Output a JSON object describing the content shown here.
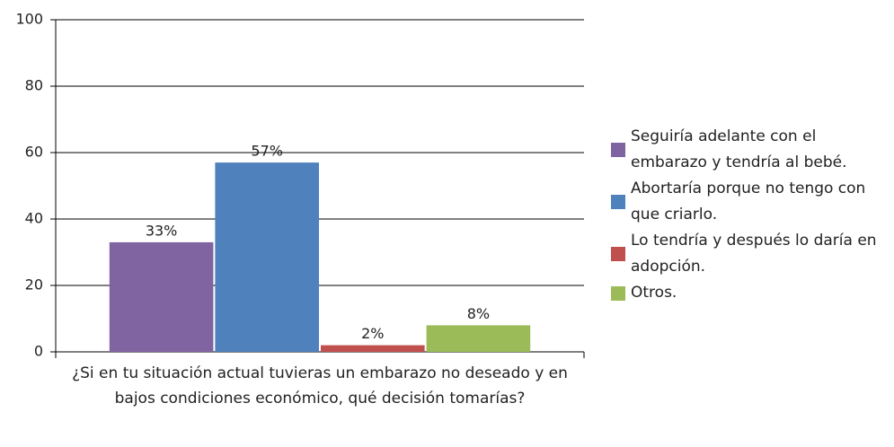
{
  "chart_data": {
    "type": "bar",
    "categories": [
      "¿Si en tu situación actual tuvieras un embarazo no deseado y en bajos condiciones económico, qué decisión tomarías?"
    ],
    "series": [
      {
        "name": "Seguiría adelante con el embarazo y tendría al bebé.",
        "color": "#8064a2",
        "values": [
          33
        ],
        "value_labels": [
          "33%"
        ]
      },
      {
        "name": "Abortaría porque no tengo con que criarlo.",
        "color": "#4f81bd",
        "values": [
          57
        ],
        "value_labels": [
          "57%"
        ]
      },
      {
        "name": "Lo tendría y después lo daría en adopción.",
        "color": "#c0504d",
        "values": [
          2
        ],
        "value_labels": [
          "2%"
        ]
      },
      {
        "name": "Otros.",
        "color": "#9bbb59",
        "values": [
          8
        ],
        "value_labels": [
          "8%"
        ]
      }
    ],
    "ylim": [
      0,
      100
    ],
    "yticks": [
      0,
      20,
      40,
      60,
      80,
      100
    ],
    "grid": true,
    "legend": "right"
  }
}
